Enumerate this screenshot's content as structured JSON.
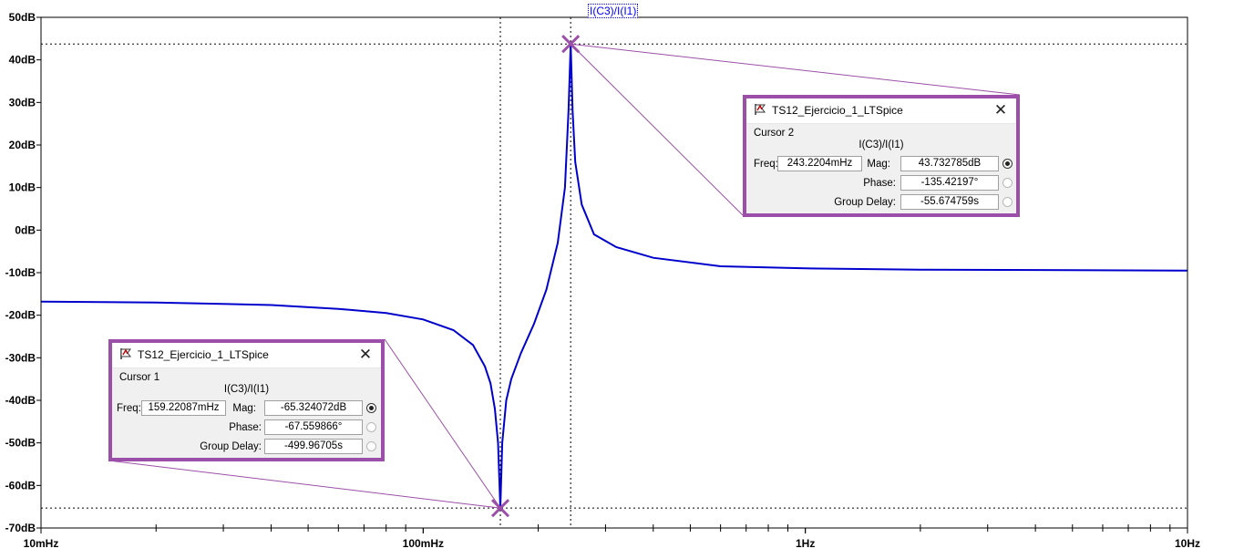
{
  "trace_title": "I(C3)/I(I1)",
  "colors": {
    "trace": "#0000cc",
    "cursor_marker": "#9c4fa8",
    "grid": "#000000"
  },
  "chart_data": {
    "type": "line",
    "xscale": "log",
    "xlim": [
      0.01,
      10
    ],
    "ylim": [
      -70,
      50
    ],
    "x_ticks": [
      {
        "value": 0.01,
        "label": "10mHz"
      },
      {
        "value": 0.1,
        "label": "100mHz"
      },
      {
        "value": 1,
        "label": "1Hz"
      },
      {
        "value": 10,
        "label": "10Hz"
      }
    ],
    "y_ticks": [
      {
        "value": 50,
        "label": "50dB"
      },
      {
        "value": 40,
        "label": "40dB"
      },
      {
        "value": 30,
        "label": "30dB"
      },
      {
        "value": 20,
        "label": "20dB"
      },
      {
        "value": 10,
        "label": "10dB"
      },
      {
        "value": 0,
        "label": "0dB"
      },
      {
        "value": -10,
        "label": "-10dB"
      },
      {
        "value": -20,
        "label": "-20dB"
      },
      {
        "value": -30,
        "label": "-30dB"
      },
      {
        "value": -40,
        "label": "-40dB"
      },
      {
        "value": -50,
        "label": "-50dB"
      },
      {
        "value": -60,
        "label": "-60dB"
      },
      {
        "value": -70,
        "label": "-70dB"
      }
    ],
    "series": [
      {
        "name": "I(C3)/I(I1)",
        "x": [
          0.01,
          0.02,
          0.04,
          0.06,
          0.08,
          0.1,
          0.12,
          0.135,
          0.145,
          0.15,
          0.154,
          0.157,
          0.1592,
          0.161,
          0.165,
          0.17,
          0.18,
          0.195,
          0.21,
          0.225,
          0.235,
          0.24,
          0.2432,
          0.246,
          0.25,
          0.26,
          0.28,
          0.32,
          0.4,
          0.6,
          1,
          2,
          5,
          10
        ],
        "y": [
          -16.8,
          -17,
          -17.6,
          -18.5,
          -19.5,
          -21,
          -23.5,
          -27,
          -32,
          -36,
          -42,
          -50,
          -65.3,
          -50,
          -40,
          -35,
          -29,
          -22,
          -14,
          -3,
          10,
          28,
          43.7,
          28,
          16,
          6,
          -1,
          -4,
          -6.5,
          -8.5,
          -9,
          -9.3,
          -9.4,
          -9.5
        ]
      }
    ],
    "grid": false,
    "cursors": [
      {
        "x": 0.1592,
        "y": -65.324072
      },
      {
        "x": 0.2432,
        "y": 43.732785
      }
    ]
  },
  "cursor_windows": [
    {
      "title": "TS12_Ejercicio_1_LTSpice",
      "cursor_label": "Cursor 2",
      "trace": "I(C3)/I(I1)",
      "freq_label": "Freq:",
      "freq": "243.2204mHz",
      "mag_label": "Mag:",
      "mag": "43.732785dB",
      "phase_label": "Phase:",
      "phase": "-135.42197°",
      "gd_label": "Group Delay:",
      "gd": "-55.674759s"
    },
    {
      "title": "TS12_Ejercicio_1_LTSpice",
      "cursor_label": "Cursor 1",
      "trace": "I(C3)/I(I1)",
      "freq_label": "Freq:",
      "freq": "159.22087mHz",
      "mag_label": "Mag:",
      "mag": "-65.324072dB",
      "phase_label": "Phase:",
      "phase": "-67.559866°",
      "gd_label": "Group Delay:",
      "gd": "-499.96705s"
    }
  ]
}
